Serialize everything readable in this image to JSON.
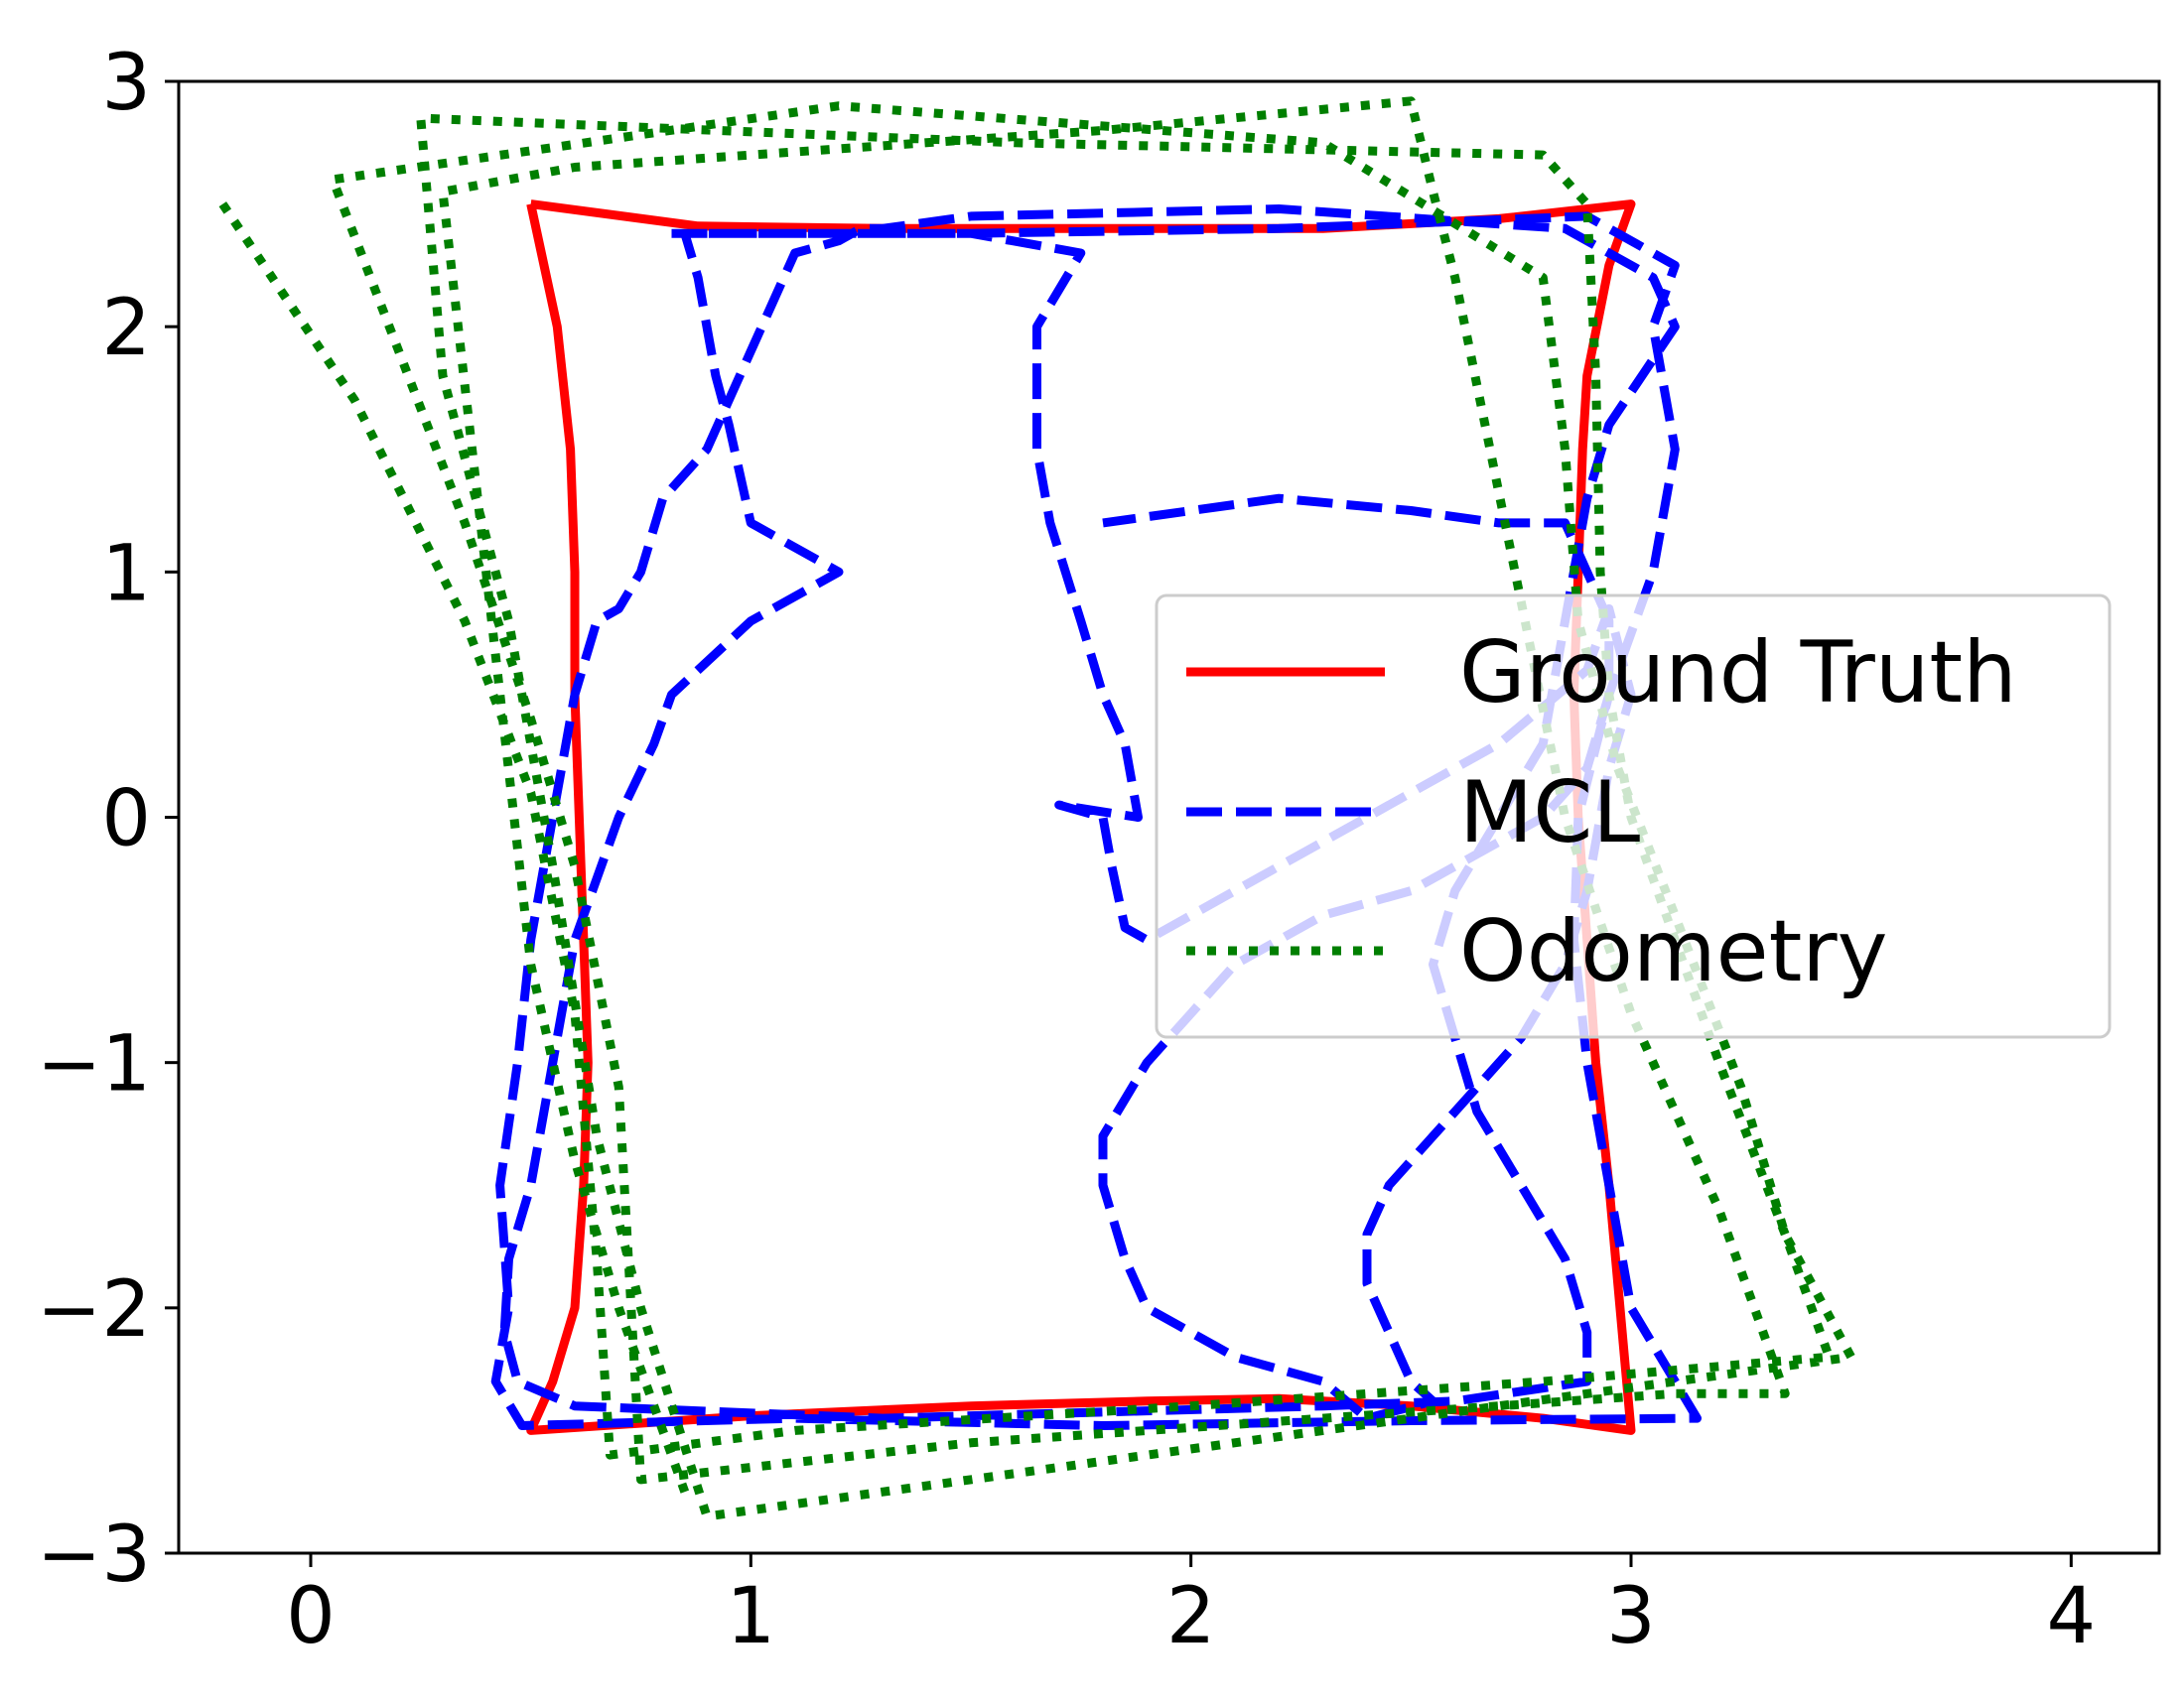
{
  "chart_data": {
    "type": "line",
    "title": "",
    "xlabel": "",
    "ylabel": "",
    "xlim": [
      -0.3,
      4.2
    ],
    "ylim": [
      -3,
      3
    ],
    "xticks": [
      0,
      1,
      2,
      3,
      4
    ],
    "yticks": [
      -3,
      -2,
      -1,
      0,
      1,
      2,
      3
    ],
    "xtick_labels": [
      "0",
      "1",
      "2",
      "3",
      "4"
    ],
    "ytick_labels": [
      "−3",
      "−2",
      "−1",
      "0",
      "1",
      "2",
      "3"
    ],
    "grid": false,
    "legend_position": "center-right",
    "series": [
      {
        "name": "Ground Truth",
        "color": "#ff0000",
        "style": "solid",
        "x": [
          0.5,
          0.88,
          1.3,
          1.8,
          2.3,
          2.7,
          3.0,
          2.95,
          2.9,
          2.89,
          2.88,
          2.87,
          2.88,
          2.9,
          2.92,
          2.95,
          3.0,
          2.8,
          2.5,
          2.2,
          1.9,
          1.5,
          1.0,
          0.5,
          0.55,
          0.6,
          0.62,
          0.63,
          0.62,
          0.61,
          0.6,
          0.6,
          0.59,
          0.56,
          0.5
        ],
        "y": [
          2.5,
          2.41,
          2.4,
          2.4,
          2.4,
          2.44,
          2.5,
          2.25,
          1.8,
          1.5,
          1.0,
          0.5,
          0.0,
          -0.5,
          -1.0,
          -1.5,
          -2.5,
          -2.45,
          -2.4,
          -2.37,
          -2.38,
          -2.4,
          -2.44,
          -2.5,
          -2.3,
          -2.0,
          -1.5,
          -1.0,
          -0.5,
          0.0,
          0.5,
          1.0,
          1.5,
          2.0,
          2.5
        ]
      },
      {
        "name": "MCL",
        "color": "#0000ff",
        "style": "dashed",
        "x": [
          0.82,
          1.5,
          2.2,
          2.9,
          3.1,
          3.05,
          3.1,
          3.05,
          2.95,
          2.88,
          2.87,
          2.9,
          2.95,
          3.0,
          3.15,
          2.5,
          1.8,
          1.1,
          0.48,
          0.42,
          0.45,
          0.43,
          0.47,
          0.5,
          0.55,
          0.6,
          0.65,
          0.7,
          0.75,
          0.8,
          0.9,
          1.0,
          1.05,
          1.1,
          1.2,
          1.25,
          1.3,
          1.5,
          2.2,
          2.85,
          3.05,
          3.1,
          2.95,
          2.9,
          2.85,
          2.8,
          2.7,
          2.6,
          2.55,
          2.6,
          2.65,
          2.75,
          2.85,
          2.9,
          2.9,
          2.6,
          2.3,
          1.9,
          1.3,
          0.6,
          0.47,
          0.44,
          0.45,
          0.5,
          0.55,
          0.6,
          0.7,
          0.78,
          0.82,
          1.0,
          1.2,
          1.0,
          0.95,
          0.92,
          0.9,
          0.88,
          0.85,
          1.5,
          1.75,
          1.65,
          1.65,
          1.68,
          1.75,
          1.8,
          1.85,
          1.88,
          1.7,
          1.8,
          1.82,
          1.85,
          1.9,
          2.1,
          2.4,
          2.7,
          2.9,
          2.95,
          3.0,
          2.95,
          2.9,
          2.85,
          2.75,
          2.65,
          2.55,
          2.45,
          2.4,
          2.4,
          2.45,
          2.5,
          2.55,
          2.4,
          2.3,
          2.1,
          1.9,
          1.85,
          1.8,
          1.8,
          1.9,
          2.0,
          2.1,
          2.3,
          2.5,
          2.6,
          2.7,
          2.8,
          2.9,
          2.95,
          2.95,
          2.9,
          2.85,
          2.7,
          2.5,
          2.2,
          1.8
        ],
        "y": [
          2.38,
          2.38,
          2.4,
          2.45,
          2.25,
          2.0,
          1.5,
          1.0,
          0.5,
          0.0,
          -0.5,
          -1.0,
          -1.5,
          -2.0,
          -2.45,
          -2.46,
          -2.48,
          -2.45,
          -2.48,
          -2.3,
          -2.0,
          -1.5,
          -1.0,
          -0.5,
          0.0,
          0.5,
          0.8,
          0.85,
          1.0,
          1.3,
          1.5,
          1.9,
          2.1,
          2.3,
          2.35,
          2.4,
          2.4,
          2.45,
          2.48,
          2.4,
          2.2,
          2.0,
          1.6,
          1.3,
          0.8,
          0.3,
          0.0,
          -0.3,
          -0.6,
          -0.9,
          -1.2,
          -1.5,
          -1.8,
          -2.1,
          -2.3,
          -2.38,
          -2.4,
          -2.42,
          -2.45,
          -2.4,
          -2.3,
          -2.1,
          -1.8,
          -1.5,
          -1.0,
          -0.5,
          0.0,
          0.3,
          0.5,
          0.8,
          1.0,
          1.2,
          1.6,
          1.8,
          2.0,
          2.2,
          2.38,
          2.38,
          2.3,
          2.0,
          1.5,
          1.2,
          0.8,
          0.5,
          0.3,
          0.0,
          0.05,
          0.0,
          -0.2,
          -0.45,
          -0.5,
          -0.3,
          0.0,
          0.3,
          0.6,
          0.85,
          0.5,
          0.2,
          -0.3,
          -0.6,
          -0.9,
          -1.1,
          -1.3,
          -1.5,
          -1.7,
          -1.9,
          -2.1,
          -2.3,
          -2.38,
          -2.45,
          -2.3,
          -2.2,
          -2.0,
          -1.8,
          -1.5,
          -1.3,
          -1.0,
          -0.8,
          -0.6,
          -0.4,
          -0.3,
          -0.2,
          -0.1,
          0.0,
          0.2,
          0.5,
          0.8,
          1.0,
          1.2,
          1.2,
          1.25,
          1.3,
          1.2
        ]
      },
      {
        "name": "Odometry",
        "color": "#007f00",
        "style": "dotted",
        "x": [
          -0.2,
          0.1,
          0.35,
          0.5,
          0.6,
          0.65,
          0.68,
          1.1,
          2.0,
          2.8,
          3.45,
          3.35,
          3.2,
          3.1,
          3.0,
          2.95,
          2.93,
          2.92,
          2.9,
          2.8,
          1.6,
          0.25,
          0.3,
          0.45,
          0.55,
          0.65,
          0.75,
          0.9,
          1.7,
          2.7,
          3.5,
          3.35,
          3.25,
          3.1,
          2.97,
          2.88,
          2.85,
          2.8,
          2.3,
          1.2,
          0.05,
          0.2,
          0.35,
          0.5,
          0.6,
          0.7,
          0.75,
          1.5,
          2.3,
          3.1,
          3.35,
          3.2,
          3.0,
          2.85,
          2.6,
          2.55,
          2.5,
          1.8,
          0.6,
          0.3,
          0.5,
          0.6,
          0.7,
          0.85
        ],
        "y": [
          2.5,
          1.7,
          0.8,
          0.1,
          -0.8,
          -1.8,
          -2.6,
          -2.5,
          -2.4,
          -2.3,
          -2.2,
          -1.7,
          -1.0,
          -0.5,
          0.0,
          0.5,
          1.0,
          1.8,
          2.5,
          2.7,
          2.75,
          2.85,
          1.8,
          0.8,
          -0.2,
          -1.3,
          -2.0,
          -2.85,
          -2.65,
          -2.4,
          -2.2,
          -1.7,
          -1.1,
          -0.4,
          0.2,
          0.8,
          1.5,
          2.2,
          2.75,
          2.9,
          2.6,
          1.9,
          1.2,
          0.4,
          -0.2,
          -1.1,
          -2.7,
          -2.55,
          -2.45,
          -2.35,
          -2.35,
          -1.6,
          -0.8,
          0.0,
          2.2,
          2.55,
          2.92,
          2.8,
          2.65,
          2.55,
          -0.6,
          -1.4,
          -2.0,
          -2.75
        ]
      }
    ],
    "legend": {
      "entries": [
        "Ground Truth",
        "MCL",
        "Odometry"
      ]
    }
  }
}
